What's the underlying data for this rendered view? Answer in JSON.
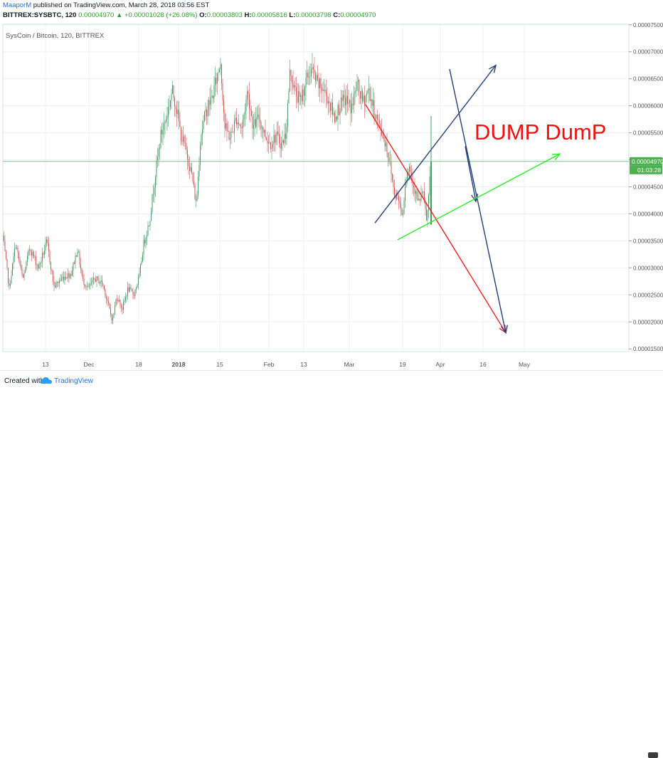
{
  "header": {
    "author": "MaaporM",
    "published": "published on TradingView.com, March 28, 2018 03:56 EST",
    "quote": {
      "symbol": "BITTREX:SYSBTC, 120",
      "last": "0.00004970",
      "change": "+0.00001028 (+26.08%)",
      "o_label": "O:",
      "o": "0.00003803",
      "h_label": "H:",
      "h": "0.00005816",
      "l_label": "L:",
      "l": "0.00003798",
      "c_label": "C:",
      "c": "0.00004970"
    }
  },
  "chart_data": {
    "type": "candlestick",
    "legend": "SysCoin / Bitcoin, 120, BITTREX",
    "annotation": "DUMP DumP",
    "y_axis": {
      "side": "right",
      "ylim": [
        1.45e-05,
        7.51e-05
      ],
      "tick_values": [
        1.5e-05,
        2e-05,
        2.5e-05,
        3e-05,
        3.5e-05,
        4e-05,
        4.5e-05,
        5e-05,
        5.5e-05,
        6e-05,
        6.5e-05,
        7e-05,
        7.5e-05
      ],
      "tick_labels": [
        "0.00001500",
        "0.00002000",
        "0.00002500",
        "0.00003000",
        "0.00003500",
        "0.00004000",
        "0.00004500",
        "0.00005000",
        "0.00005500",
        "0.00006000",
        "0.00006500",
        "0.00007000",
        "0.00007500"
      ]
    },
    "x_axis": {
      "ticks": [
        "13",
        "Dec",
        "18",
        "2018",
        "15",
        "Feb",
        "13",
        "Mar",
        "19",
        "Apr",
        "16",
        "May"
      ]
    },
    "last_price_label": "0.00004970",
    "countdown_label": "01:03:28",
    "last_price": 4.97e-05,
    "colors": {
      "up": "#4a9a68",
      "down": "#c85a5a",
      "grid": "#eef0f4",
      "price_line": "#5fbf7f",
      "annotation": "#ee1111",
      "navy": "#233f7a",
      "green_line": "#22ee22",
      "red_line": "#ee2222"
    },
    "series": [
      {
        "t": 0,
        "p": 3.57e-05
      },
      {
        "t": 9,
        "p": 2.62e-05
      },
      {
        "t": 18,
        "p": 3.45e-05
      },
      {
        "t": 28,
        "p": 2.78e-05
      },
      {
        "t": 38,
        "p": 3.38e-05
      },
      {
        "t": 50,
        "p": 3e-05
      },
      {
        "t": 62,
        "p": 3.48e-05
      },
      {
        "t": 72,
        "p": 2.65e-05
      },
      {
        "t": 84,
        "p": 2.82e-05
      },
      {
        "t": 96,
        "p": 2.9e-05
      },
      {
        "t": 105,
        "p": 3.35e-05
      },
      {
        "t": 112,
        "p": 2.78e-05
      },
      {
        "t": 120,
        "p": 2.62e-05
      },
      {
        "t": 130,
        "p": 2.8e-05
      },
      {
        "t": 140,
        "p": 2.72e-05
      },
      {
        "t": 148,
        "p": 2.33e-05
      },
      {
        "t": 154,
        "p": 2.02e-05
      },
      {
        "t": 160,
        "p": 2.48e-05
      },
      {
        "t": 168,
        "p": 2.25e-05
      },
      {
        "t": 176,
        "p": 2.62e-05
      },
      {
        "t": 184,
        "p": 2.5e-05
      },
      {
        "t": 192,
        "p": 2.85e-05
      },
      {
        "t": 198,
        "p": 3.45e-05
      },
      {
        "t": 206,
        "p": 3.85e-05
      },
      {
        "t": 214,
        "p": 4.7e-05
      },
      {
        "t": 222,
        "p": 5.45e-05
      },
      {
        "t": 230,
        "p": 5.8e-05
      },
      {
        "t": 238,
        "p": 6.28e-05
      },
      {
        "t": 244,
        "p": 5.98e-05
      },
      {
        "t": 250,
        "p": 5.48e-05
      },
      {
        "t": 258,
        "p": 5.15e-05
      },
      {
        "t": 266,
        "p": 4.7e-05
      },
      {
        "t": 272,
        "p": 4.15e-05
      },
      {
        "t": 278,
        "p": 5.45e-05
      },
      {
        "t": 286,
        "p": 5.92e-05
      },
      {
        "t": 294,
        "p": 6.15e-05
      },
      {
        "t": 300,
        "p": 6.48e-05
      },
      {
        "t": 306,
        "p": 6.82e-05
      },
      {
        "t": 312,
        "p": 5.6e-05
      },
      {
        "t": 320,
        "p": 5.4e-05
      },
      {
        "t": 328,
        "p": 5.78e-05
      },
      {
        "t": 336,
        "p": 5.58e-05
      },
      {
        "t": 344,
        "p": 6.28e-05
      },
      {
        "t": 352,
        "p": 5.6e-05
      },
      {
        "t": 360,
        "p": 5.78e-05
      },
      {
        "t": 368,
        "p": 5.48e-05
      },
      {
        "t": 376,
        "p": 5.3e-05
      },
      {
        "t": 384,
        "p": 5.45e-05
      },
      {
        "t": 392,
        "p": 5.28e-05
      },
      {
        "t": 398,
        "p": 5.5e-05
      },
      {
        "t": 404,
        "p": 6.68e-05
      },
      {
        "t": 410,
        "p": 6.28e-05
      },
      {
        "t": 418,
        "p": 6.08e-05
      },
      {
        "t": 426,
        "p": 6.45e-05
      },
      {
        "t": 434,
        "p": 6.68e-05
      },
      {
        "t": 442,
        "p": 6.4e-05
      },
      {
        "t": 450,
        "p": 6.32e-05
      },
      {
        "t": 458,
        "p": 6.1e-05
      },
      {
        "t": 466,
        "p": 5.78e-05
      },
      {
        "t": 474,
        "p": 6e-05
      },
      {
        "t": 482,
        "p": 6.12e-05
      },
      {
        "t": 490,
        "p": 5.95e-05
      },
      {
        "t": 498,
        "p": 6.4e-05
      },
      {
        "t": 506,
        "p": 6.06e-05
      },
      {
        "t": 514,
        "p": 6.3e-05
      },
      {
        "t": 522,
        "p": 5.9e-05
      },
      {
        "t": 530,
        "p": 5.6e-05
      },
      {
        "t": 538,
        "p": 5.32e-05
      },
      {
        "t": 544,
        "p": 4.95e-05
      },
      {
        "t": 550,
        "p": 4.4e-05
      },
      {
        "t": 556,
        "p": 4.3e-05
      },
      {
        "t": 562,
        "p": 3.98e-05
      },
      {
        "t": 566,
        "p": 4.65e-05
      },
      {
        "t": 572,
        "p": 4.88e-05
      },
      {
        "t": 578,
        "p": 4.5e-05
      },
      {
        "t": 584,
        "p": 4.18e-05
      },
      {
        "t": 590,
        "p": 4.42e-05
      },
      {
        "t": 596,
        "p": 3.85e-05
      },
      {
        "t": 602,
        "p": 4.97e-05
      }
    ],
    "drawings": [
      {
        "name": "red-trend-arrow",
        "color": "#ee2222",
        "from": {
          "t": 510,
          "p": 6.02e-05
        },
        "to": {
          "t": 707,
          "p": 1.8e-05
        },
        "arrow": true
      },
      {
        "name": "navy-up-arrow",
        "color": "#233f7a",
        "from": {
          "t": 523,
          "p": 3.83e-05
        },
        "to": {
          "t": 693,
          "p": 6.75e-05
        },
        "arrow": true
      },
      {
        "name": "navy-down-arrow",
        "color": "#233f7a",
        "from": {
          "t": 628,
          "p": 6.68e-05
        },
        "to": {
          "t": 707,
          "p": 1.8e-05
        },
        "arrow": true
      },
      {
        "name": "navy-cross-arrow",
        "color": "#233f7a",
        "from": {
          "t": 650,
          "p": 5.25e-05
        },
        "to": {
          "t": 665,
          "p": 4.23e-05
        },
        "arrow": true
      },
      {
        "name": "green-trend-arrow",
        "color": "#22ee22",
        "from": {
          "t": 555,
          "p": 3.52e-05
        },
        "to": {
          "t": 783,
          "p": 5.11e-05
        },
        "arrow": true
      }
    ]
  },
  "footer": {
    "created": "Created with",
    "brand": "TradingView"
  }
}
